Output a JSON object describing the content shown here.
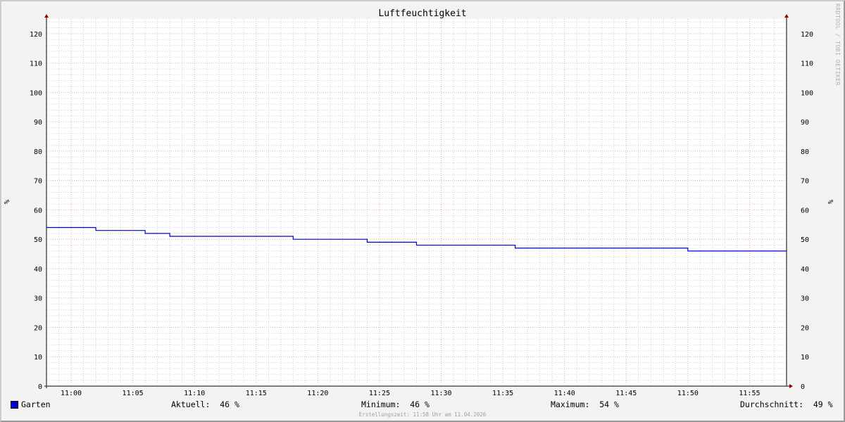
{
  "chart_data": {
    "type": "line",
    "title": "Luftfeuchtigkeit",
    "ylabel": "%",
    "ylabel_right": "%",
    "ylim": [
      0,
      125
    ],
    "yticks": [
      0,
      10,
      20,
      30,
      40,
      50,
      60,
      70,
      80,
      90,
      100,
      110,
      120
    ],
    "xlim": [
      "10:58",
      "11:58"
    ],
    "xticks": [
      "11:00",
      "11:05",
      "11:10",
      "11:15",
      "11:20",
      "11:25",
      "11:30",
      "11:35",
      "11:40",
      "11:45",
      "11:50",
      "11:55"
    ],
    "grid": true,
    "line_style": "step",
    "series": [
      {
        "name": "Garten",
        "color": "#0000cc",
        "points": [
          [
            "10:58",
            54
          ],
          [
            "11:02",
            53
          ],
          [
            "11:06",
            52
          ],
          [
            "11:08",
            51
          ],
          [
            "11:18",
            50
          ],
          [
            "11:24",
            49
          ],
          [
            "11:28",
            48
          ],
          [
            "11:36",
            47
          ],
          [
            "11:50",
            46
          ],
          [
            "11:58",
            46
          ]
        ]
      }
    ]
  },
  "legend": {
    "series_name": "Garten",
    "current": "Aktuell:  46 %",
    "minimum": "Minimum:  46 %",
    "maximum": "Maximum:  54 %",
    "average": "Durchschnitt:  49 %"
  },
  "footer": "Erstellungszeit: 11:58 Uhr am 11.04.2026",
  "watermark": "RRDTOOL / TOBI OETIKER"
}
